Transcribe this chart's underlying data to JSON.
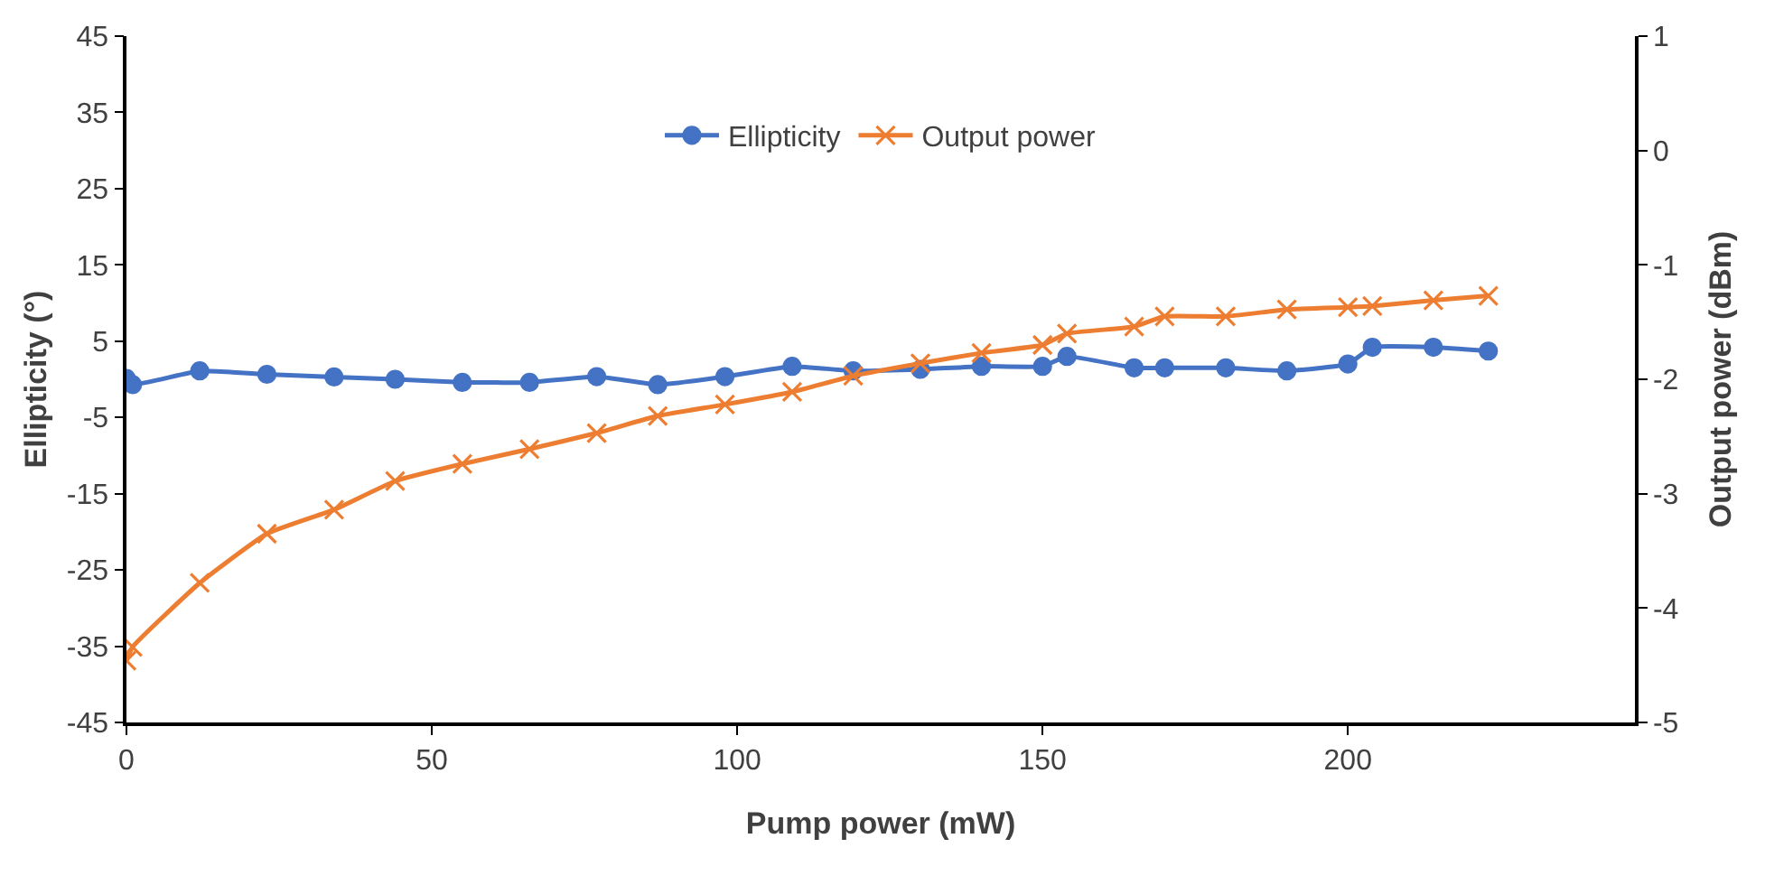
{
  "chart_data": {
    "type": "line",
    "xlabel": "Pump power (mW)",
    "ylabel": "Ellipticity (°)",
    "y2label": "Output power (dBm)",
    "x": [
      0,
      1,
      12,
      23,
      34,
      44,
      55,
      66,
      77,
      87,
      98,
      109,
      119,
      130,
      140,
      150,
      154,
      165,
      170,
      180,
      190,
      200,
      204,
      214,
      223
    ],
    "series": [
      {
        "name": "Ellipticity",
        "color": "#4472c4",
        "marker": "circle",
        "values": [
          0.1,
          -0.7,
          1.1,
          0.65,
          0.3,
          0,
          -0.4,
          -0.4,
          0.35,
          -0.7,
          0.35,
          1.7,
          1.1,
          1.3,
          1.7,
          1.7,
          3.0,
          1.5,
          1.5,
          1.5,
          1.1,
          2.0,
          4.2,
          4.2,
          3.7
        ]
      },
      {
        "name": "Output power",
        "color": "#ed7d31",
        "marker": "cross",
        "axis": "y2",
        "values": [
          -4.46,
          -4.34,
          -3.78,
          -3.35,
          -3.14,
          -2.89,
          -2.74,
          -2.61,
          -2.47,
          -2.32,
          -2.22,
          -2.11,
          -1.97,
          -1.86,
          -1.77,
          -1.7,
          -1.6,
          -1.54,
          -1.45,
          -1.45,
          -1.39,
          -1.37,
          -1.36,
          -1.31,
          -1.27
        ]
      }
    ],
    "xlim": [
      0,
      247
    ],
    "xticks": [
      0,
      50,
      100,
      150,
      200
    ],
    "ylim": [
      -45,
      45
    ],
    "yticks": [
      -45,
      -35,
      -25,
      -15,
      -5,
      5,
      15,
      25,
      35,
      45
    ],
    "y2lim": [
      -5,
      1
    ],
    "y2ticks": [
      -5,
      -4,
      -3,
      -2,
      -1,
      0,
      1
    ],
    "grid": false,
    "legend": "top",
    "line_style": "solid"
  }
}
